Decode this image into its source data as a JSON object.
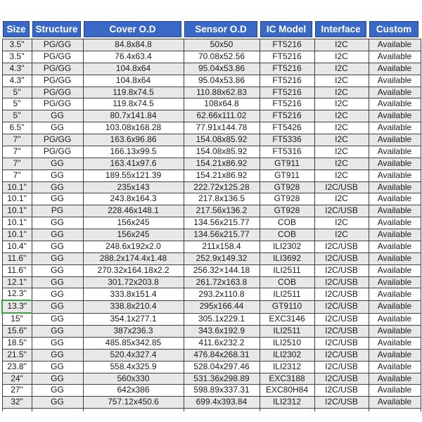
{
  "table": {
    "columns": [
      "Size",
      "Structure",
      "Cover O.D",
      "Sensor O.D",
      "IC Model",
      "Interface",
      "Custom"
    ],
    "rows": [
      [
        "3.5\"",
        "PG/GG",
        "84.8x84.8",
        "50x50",
        "FT5216",
        "I2C",
        "Available"
      ],
      [
        "3.5\"",
        "PG/GG",
        "76.4x63.4",
        "70.08x52.56",
        "FT5216",
        "I2C",
        "Available"
      ],
      [
        "4.3\"",
        "PG/GG",
        "104.8x64",
        "95.04x53.86",
        "FT5216",
        "I2C",
        "Available"
      ],
      [
        "4.3\"",
        "PG/GG",
        "104.8x64",
        "95.04x53.86",
        "FT5216",
        "I2C",
        "Available"
      ],
      [
        "5\"",
        "PG/GG",
        "119.8x74.5",
        "110.88x62.83",
        "FT5216",
        "I2C",
        "Available"
      ],
      [
        "5\"",
        "PG/GG",
        "119.8x74.5",
        "108x64.8",
        "FT5216",
        "I2C",
        "Available"
      ],
      [
        "5\"",
        "GG",
        "80.7x141.84",
        "62.66x111.02",
        "FT5216",
        "I2C",
        "Available"
      ],
      [
        "6.5\"",
        "GG",
        "103.08x168.28",
        "77.91x144.78",
        "FT5426",
        "I2C",
        "Available"
      ],
      [
        "7\"",
        "PG/GG",
        "163.6x96.86",
        "154.08x85.92",
        "FT5336",
        "I2C",
        "Available"
      ],
      [
        "7\"",
        "PG/GG",
        "166.13x99.5",
        "154.08x85.92",
        "FT5316",
        "I2C",
        "Available"
      ],
      [
        "7\"",
        "GG",
        "163.41x97.6",
        "154.21x86.92",
        "GT911",
        "I2C",
        "Available"
      ],
      [
        "7\"",
        "GG",
        "189.55x121.39",
        "154.21x86.92",
        "GT911",
        "I2C",
        "Available"
      ],
      [
        "10.1\"",
        "GG",
        "235x143",
        "222.72x125.28",
        "GT928",
        "I2C/USB",
        "Available"
      ],
      [
        "10.1\"",
        "GG",
        "243.8x164.3",
        "217.8x136.5",
        "GT928",
        "I2C",
        "Available"
      ],
      [
        "10.1\"",
        "PG",
        "228.46x148.1",
        "217.56x136.2",
        "GT928",
        "I2C/USB",
        "Available"
      ],
      [
        "10.1\"",
        "GG",
        "156x245",
        "134.56x215.77",
        "COB",
        "I2C",
        "Available"
      ],
      [
        "10.1\"",
        "GG",
        "156x245",
        "134.56x215.77",
        "COB",
        "I2C",
        "Available"
      ],
      [
        "10.4\"",
        "GG",
        "248.6x192x2.0",
        "211x158.4",
        "ILI2302",
        "I2C/USB",
        "Available"
      ],
      [
        "11.6\"",
        "GG",
        "288.2x174.4x1.48",
        "252.9x149.32",
        "ILI3692",
        "I2C/USB",
        "Available"
      ],
      [
        "11.6\"",
        "GG",
        "270.32x164.18x2.2",
        "256.32×144.18",
        "ILI2511",
        "I2C/USB",
        "Available"
      ],
      [
        "12.1\"",
        "GG",
        "301.72x203.8",
        "261.72x163.8",
        "COB",
        "I2C/USB",
        "Available"
      ],
      [
        "12.3\"",
        "GG",
        "333.8x151.4",
        "293.2x110.8",
        "ILI2511",
        "I2C/USB",
        "Available"
      ],
      [
        "13.3\"",
        "GG",
        "338.8x210.4",
        "295x166.44",
        "GT9110",
        "I2C/USB",
        "Available"
      ],
      [
        "15\"",
        "GG",
        "354.1x277.1",
        "305.1x229.1",
        "EXC3146",
        "I2C/USB",
        "Available"
      ],
      [
        "15.6\"",
        "GG",
        "387x236.3",
        "343.6x192.9",
        "ILI2511",
        "I2C/USB",
        "Available"
      ],
      [
        "18.5\"",
        "GG",
        "485.85x342.85",
        "411.6x232.2",
        "ILI2510",
        "I2C/USB",
        "Available"
      ],
      [
        "21.5\"",
        "GG",
        "520.4x327.4",
        "476.84x268.31",
        "ILI2302",
        "I2C/USB",
        "Available"
      ],
      [
        "23.8\"",
        "GG",
        "558.4x325.9",
        "528.04x297.46",
        "ILI2312",
        "I2C/USB",
        "Available"
      ],
      [
        "24\"",
        "GG",
        "560x330",
        "531.36x298.89",
        "EXC3188",
        "I2C/USB",
        "Available"
      ],
      [
        "27\"",
        "GG",
        "642x386",
        "598.89x337.31",
        "EXC80H84",
        "I2C/USB",
        "Available"
      ],
      [
        "32\"",
        "GG",
        "757.12x450.6",
        "699.4x393.84",
        "ILI2312",
        "I2C/USB",
        "Available"
      ]
    ],
    "selected_cell": {
      "row": 22,
      "col": 0
    },
    "colors": {
      "header_bg": "#3A68C7",
      "header_outline": "#1F3F8F",
      "header_text": "#FFFFFF",
      "row_alt_bg": "#E8E8E8",
      "row_bg": "#FFFFFF",
      "border": "#404040",
      "text": "#1A1A1A",
      "selection_green": "#3FA049"
    }
  }
}
